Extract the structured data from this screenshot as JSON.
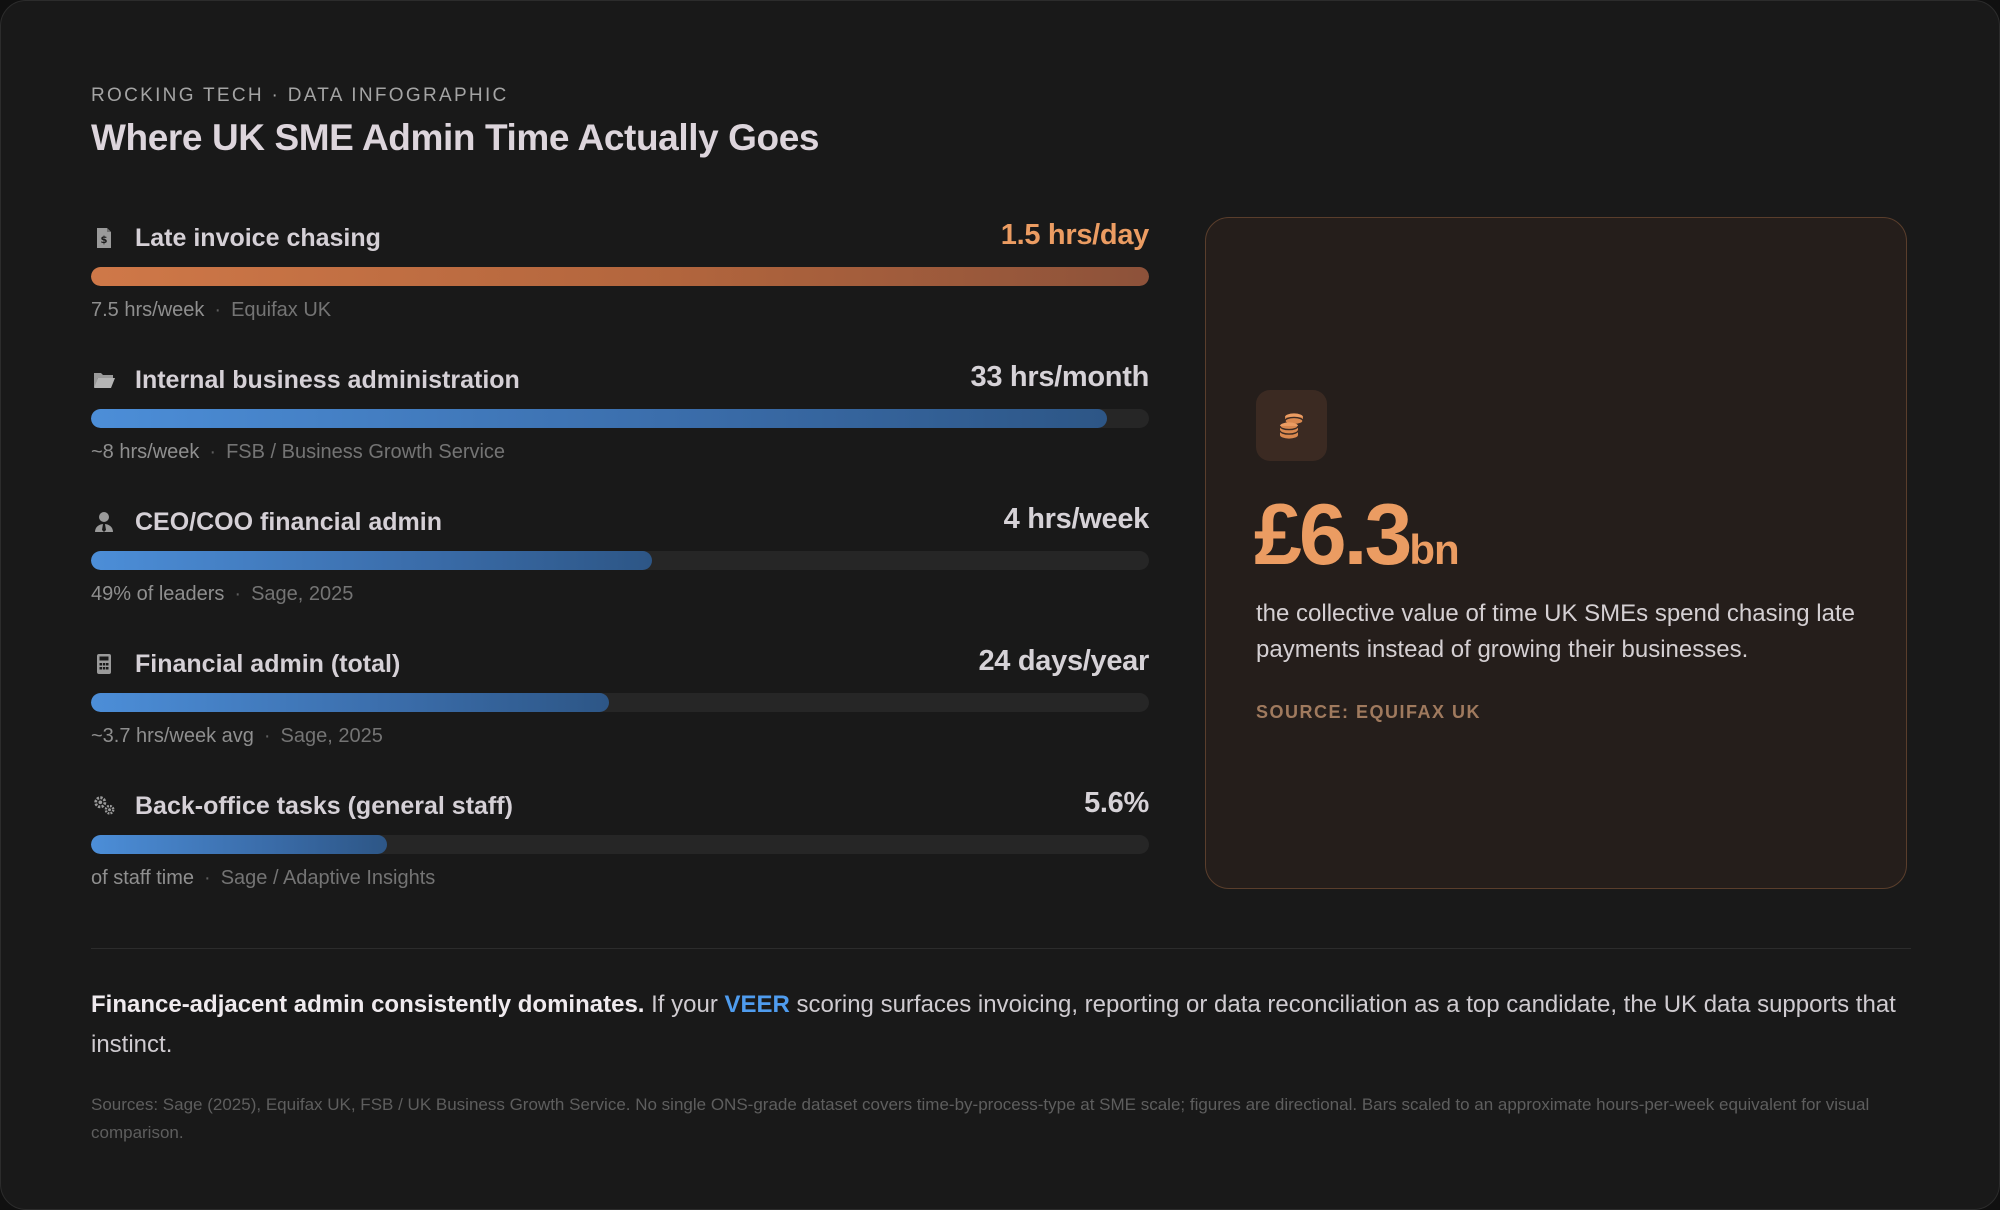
{
  "header": {
    "eyebrow": "ROCKING TECH · DATA INFOGRAPHIC",
    "title": "Where UK SME Admin Time Actually Goes"
  },
  "chart_data": {
    "type": "bar",
    "orientation": "horizontal",
    "title": "Where UK SME Admin Time Actually Goes",
    "scale_note": "Bars scaled to an approximate hours-per-week equivalent for visual comparison",
    "xlim": [
      0,
      7.5
    ],
    "grid": false,
    "categories": [
      "Late invoice chasing",
      "Internal business administration",
      "CEO/COO financial admin",
      "Financial admin (total)",
      "Back-office tasks (general staff)"
    ],
    "values": [
      7.5,
      7.2,
      4.0,
      3.7,
      2.1
    ],
    "rows": [
      {
        "label": "Late invoice chasing",
        "value_text": "1.5 hrs/day",
        "detail": "7.5 hrs/week",
        "source": "Equifax UK",
        "fill": 1.0,
        "color": "#cf7848",
        "icon": "invoice-icon",
        "highlight": true
      },
      {
        "label": "Internal business administration",
        "value_text": "33 hrs/month",
        "detail": "~8 hrs/week",
        "source": "FSB / Business Growth Service",
        "fill": 0.96,
        "color": "#4c8ed8",
        "icon": "folder-icon",
        "highlight": false
      },
      {
        "label": "CEO/COO financial admin",
        "value_text": "4 hrs/week",
        "detail": "49% of leaders",
        "source": "Sage, 2025",
        "fill": 0.53,
        "color": "#4c8ed8",
        "icon": "user-tie-icon",
        "highlight": false
      },
      {
        "label": "Financial admin (total)",
        "value_text": "24 days/year",
        "detail": "~3.7 hrs/week avg",
        "source": "Sage, 2025",
        "fill": 0.49,
        "color": "#4c8ed8",
        "icon": "calculator-icon",
        "highlight": false
      },
      {
        "label": "Back-office tasks (general staff)",
        "value_text": "5.6%",
        "detail": "of staff time",
        "source": "Sage / Adaptive Insights",
        "fill": 0.28,
        "color": "#4c8ed8",
        "icon": "cogs-icon",
        "highlight": false
      }
    ]
  },
  "stat_card": {
    "icon": "coins-icon",
    "value": "£6.3",
    "unit": "bn",
    "description": "the collective value of time UK SMEs spend chasing late payments instead of growing their businesses.",
    "source": "SOURCE: EQUIFAX UK",
    "accent": "#eb9c62"
  },
  "insight": {
    "lead": "Finance-adjacent admin consistently dominates.",
    "pre": " If your ",
    "highlight": "VEER",
    "post": " scoring surfaces invoicing, reporting or data reconciliation as a top candidate, the UK data supports that instinct."
  },
  "footnote": "Sources: Sage (2025), Equifax UK, FSB / UK Business Growth Service. No single ONS-grade dataset covers time-by-process-type at SME scale; figures are directional. Bars scaled to an approximate hours-per-week equivalent for visual comparison."
}
